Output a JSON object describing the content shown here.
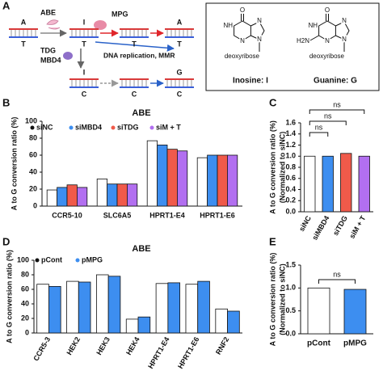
{
  "diagram": {
    "label": "A",
    "enzymes": {
      "abe": "ABE",
      "mpg": "MPG",
      "tdg": "TDG",
      "mbd4": "MBD4"
    },
    "pathway": "DNA replication, MMR",
    "bases": [
      "A",
      "T",
      "I",
      "T",
      "T",
      "A",
      "T",
      "I",
      "C",
      "C",
      "G",
      "C"
    ],
    "molecules": [
      {
        "name": "Inosine: I",
        "sugar": "deoxyribose",
        "atoms": [
          "O",
          "NH",
          "N",
          "N",
          "N"
        ]
      },
      {
        "name": "Guanine: G",
        "sugar": "deoxyribose",
        "atoms": [
          "O",
          "NH",
          "N",
          "N",
          "N",
          "H2N"
        ]
      }
    ]
  },
  "chart_data": [
    {
      "type": "bar",
      "label": "B",
      "title": "ABE",
      "ylabel": "A to G conversion ratio (%)",
      "categories": [
        "CCR5-10",
        "SLC6A5",
        "HPRT1-E4",
        "HPRT1-E6"
      ],
      "series": [
        {
          "name": "siNC",
          "color": "#ffffff",
          "values": [
            19,
            32,
            77,
            57
          ]
        },
        {
          "name": "siMBD4",
          "color": "#3d8ef0",
          "values": [
            22,
            26,
            72,
            60
          ]
        },
        {
          "name": "siTDG",
          "color": "#f05a4a",
          "values": [
            25,
            26,
            67,
            60
          ]
        },
        {
          "name": "siM + T",
          "color": "#b26ff0",
          "values": [
            22,
            26,
            65,
            60
          ]
        }
      ],
      "ylim": [
        0,
        100
      ],
      "yticks": [
        0,
        20,
        40,
        60,
        80,
        100
      ],
      "legend": "top"
    },
    {
      "type": "bar",
      "label": "C",
      "ylabel": [
        "A to G conversion ratio (%)",
        "(Normalized to siNC)"
      ],
      "categories": [
        "siNC",
        "siMBD4",
        "siTDG",
        "siM + T"
      ],
      "values": [
        1,
        1,
        1.05,
        1
      ],
      "colors": [
        "#ffffff",
        "#3d8ef0",
        "#f05a4a",
        "#b26ff0"
      ],
      "ylim": [
        0,
        1.6
      ],
      "yticks": [
        {
          "value": 0,
          "label": "0.0"
        },
        {
          "value": 0.2,
          "label": "0.2"
        },
        {
          "value": 0.4,
          "label": "0.4"
        },
        {
          "value": 0.6,
          "label": "0.6"
        },
        {
          "value": 0.8,
          "label": "0.8"
        },
        {
          "value": 1,
          "label": "1.0"
        },
        {
          "value": 1.2,
          "label": "1.2"
        },
        {
          "value": 1.4,
          "label": "1.4"
        },
        {
          "value": 1.6,
          "label": "1.6"
        }
      ],
      "annotations": [
        "ns",
        "ns",
        "ns"
      ]
    },
    {
      "type": "bar",
      "label": "D",
      "title": "ABE",
      "ylabel": "A to G conversion ratio (%)",
      "categories": [
        "CCR5-3",
        "HEK2",
        "HEK3",
        "HEK4",
        "HPRT1-E4",
        "HPRT1-E6",
        "RNF2"
      ],
      "series": [
        {
          "name": "pCont",
          "color": "#ffffff",
          "values": [
            67,
            71,
            80,
            19,
            68,
            67,
            33
          ]
        },
        {
          "name": "pMPG",
          "color": "#3d8ef0",
          "values": [
            64,
            70,
            78,
            22,
            69,
            71,
            30
          ]
        }
      ],
      "ylim": [
        0,
        100
      ],
      "yticks": [
        0,
        20,
        40,
        60,
        80,
        100
      ],
      "legend": "top left"
    },
    {
      "type": "bar",
      "label": "E",
      "ylabel": [
        "A to G conversion ratio (%)",
        "(Normalized to siNC)"
      ],
      "categories": [
        "pCont",
        "pMPG"
      ],
      "values": [
        1,
        0.97
      ],
      "colors": [
        "#ffffff",
        "#3d8ef0"
      ],
      "ylim": [
        0,
        1.5
      ],
      "yticks": [
        {
          "value": 0,
          "label": "0.0"
        },
        {
          "value": 0.5,
          "label": "0.5"
        },
        {
          "value": 1,
          "label": "1.0"
        },
        {
          "value": 1.5,
          "label": "1.5"
        }
      ],
      "annotations": [
        "ns"
      ]
    }
  ]
}
